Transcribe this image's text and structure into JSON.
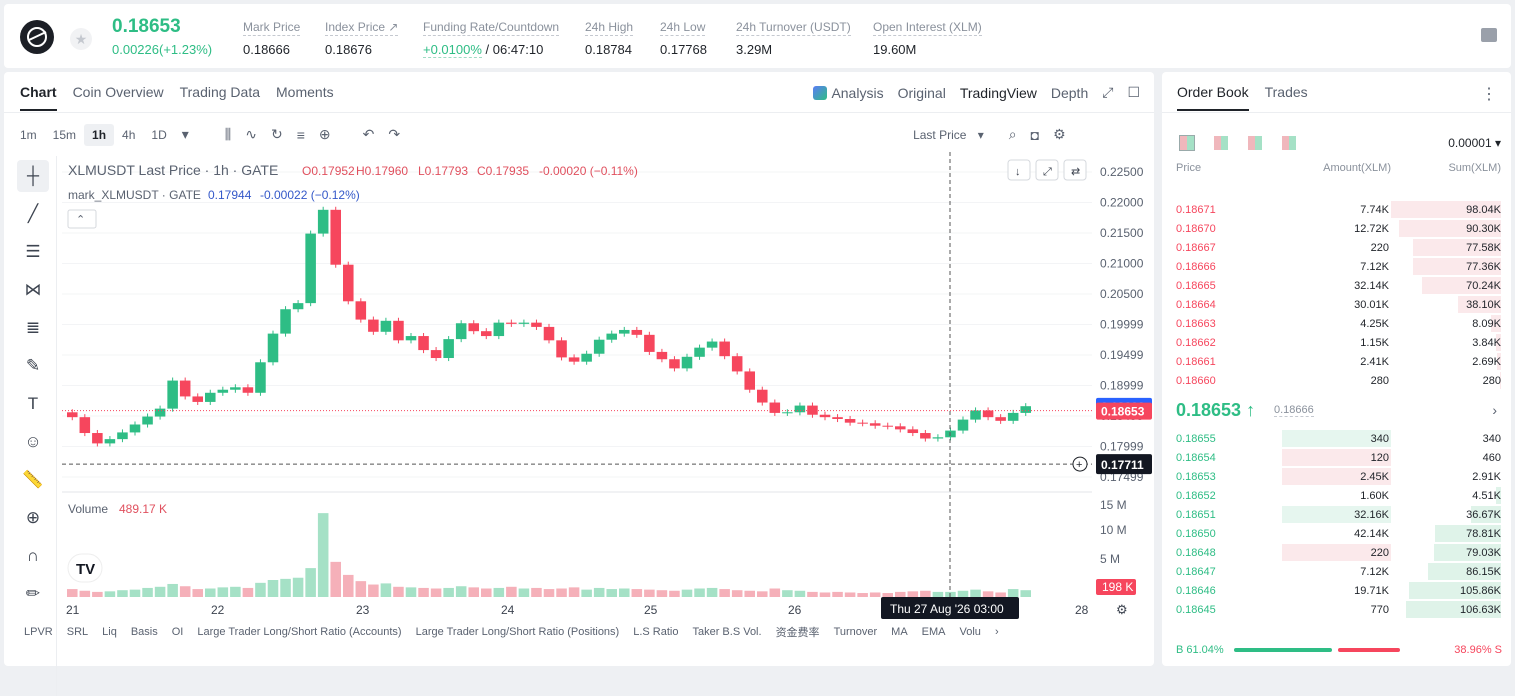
{
  "header": {
    "price": "0.18653",
    "change": "0.00226(+1.23%)",
    "stats": [
      {
        "label": "Mark Price",
        "value": "0.18666"
      },
      {
        "label": "Index Price ↗",
        "value": "0.18676"
      },
      {
        "label": "Funding Rate/Countdown",
        "value_green": "+0.0100%",
        "value": " / 06:47:10"
      },
      {
        "label": "24h High",
        "value": "0.18784"
      },
      {
        "label": "24h Low",
        "value": "0.17768"
      },
      {
        "label": "24h Turnover (USDT)",
        "value": "3.29M"
      },
      {
        "label": "Open Interest (XLM)",
        "value": "19.60M"
      }
    ]
  },
  "chart_tabs": [
    "Chart",
    "Coin Overview",
    "Trading Data",
    "Moments"
  ],
  "views": {
    "analysis": "Analysis",
    "original": "Original",
    "tradingview": "TradingView",
    "depth": "Depth"
  },
  "intervals": [
    "1m",
    "15m",
    "1h",
    "4h",
    "1D"
  ],
  "last_price_select": "Last Price",
  "legend": {
    "title": "XLMUSDT Last Price · 1h · GATE",
    "o": "O0.17952",
    "h": "H0.17960",
    "l": "L0.17793",
    "c": "C0.17935",
    "chg": "-0.00020 (−0.11%)",
    "mark": "mark_XLMUSDT · GATE",
    "mark_v": "0.17944",
    "mark_chg": "-0.00022 (−0.12%)"
  },
  "volume": {
    "label": "Volume",
    "value": "489.17 K",
    "y_labels": [
      "15 M",
      "10 M",
      "5 M"
    ],
    "last": "198 K"
  },
  "chart_data": {
    "type": "candlestick",
    "y_ticks": [
      "0.22500",
      "0.22000",
      "0.21500",
      "0.21000",
      "0.20500",
      "0.19999",
      "0.19499",
      "0.18999",
      "0.18499",
      "0.17999",
      "0.17499"
    ],
    "x_ticks": [
      "21",
      "22",
      "23",
      "24",
      "25",
      "26",
      "28"
    ],
    "ylim": [
      0.17499,
      0.225
    ],
    "mark_price": "0.18666",
    "last_price": "0.18653",
    "cursor_price": "0.17711",
    "cursor_time": "Thu 27 Aug '26   03:00",
    "close": [
      0.1848,
      0.1822,
      0.1805,
      0.1812,
      0.1823,
      0.1836,
      0.1849,
      0.1862,
      0.1908,
      0.1882,
      0.1873,
      0.1888,
      0.1893,
      0.1897,
      0.1888,
      0.1938,
      0.1985,
      0.2025,
      0.2035,
      0.2149,
      0.2188,
      0.2098,
      0.2038,
      0.2008,
      0.1988,
      0.2006,
      0.1974,
      0.1981,
      0.1958,
      0.1945,
      0.1976,
      0.2002,
      0.1989,
      0.1981,
      0.2003,
      0.2001,
      0.2003,
      0.1996,
      0.1974,
      0.1946,
      0.1939,
      0.1952,
      0.1975,
      0.1985,
      0.1991,
      0.1983,
      0.1955,
      0.1943,
      0.1928,
      0.1947,
      0.1962,
      0.1972,
      0.1948,
      0.1923,
      0.1893,
      0.1872,
      0.1855,
      0.1856,
      0.1867,
      0.1852,
      0.1848,
      0.1845,
      0.1839,
      0.1838,
      0.1834,
      0.1833,
      0.1828,
      0.1822,
      0.1813,
      0.1815,
      0.1826,
      0.1844,
      0.1859,
      0.1848,
      0.1842,
      0.1855,
      0.1866
    ],
    "volume": [
      1.4,
      1.1,
      0.9,
      1.0,
      1.2,
      1.3,
      1.6,
      1.8,
      2.3,
      1.9,
      1.4,
      1.5,
      1.7,
      1.8,
      1.6,
      2.5,
      3.0,
      3.2,
      3.4,
      5.1,
      14.8,
      6.2,
      3.9,
      2.8,
      2.2,
      2.4,
      1.8,
      1.7,
      1.6,
      1.5,
      1.6,
      1.9,
      1.7,
      1.5,
      1.6,
      1.8,
      1.5,
      1.6,
      1.4,
      1.5,
      1.7,
      1.3,
      1.6,
      1.4,
      1.5,
      1.4,
      1.3,
      1.2,
      1.1,
      1.3,
      1.5,
      1.6,
      1.4,
      1.2,
      1.1,
      1.0,
      1.5,
      1.2,
      1.1,
      0.9,
      0.8,
      0.9,
      0.8,
      0.7,
      0.8,
      0.7,
      0.9,
      1.0,
      1.1,
      0.9,
      0.9,
      1.1,
      1.3,
      1.0,
      0.8,
      1.4,
      1.2
    ]
  },
  "toolbar_icons": [
    "crosshair-icon",
    "trendline-icon",
    "fib-icon",
    "pattern-icon",
    "measure-lines-icon",
    "brush-icon",
    "text-icon",
    "emoji-icon",
    "ruler-icon",
    "zoom-icon",
    "magnet-icon",
    "pencil-icon"
  ],
  "indicators": [
    "LPVR",
    "SRL",
    "Liq",
    "Basis",
    "OI",
    "Large Trader Long/Short Ratio (Accounts)",
    "Large Trader Long/Short Ratio (Positions)",
    "L.S Ratio",
    "Taker B.S Vol.",
    "资金费率",
    "Turnover",
    "MA",
    "EMA",
    "Volu"
  ],
  "orderbook": {
    "tabs": [
      "Order Book",
      "Trades"
    ],
    "precision": "0.00001",
    "headers": {
      "price": "Price",
      "amount": "Amount(XLM)",
      "sum": "Sum(XLM)"
    },
    "asks": [
      {
        "p": "0.18671",
        "a": "7.74K",
        "s": "98.04K",
        "depth": 0.92
      },
      {
        "p": "0.18670",
        "a": "12.72K",
        "s": "90.30K",
        "depth": 0.85
      },
      {
        "p": "0.18667",
        "a": "220",
        "s": "77.58K",
        "depth": 0.73
      },
      {
        "p": "0.18666",
        "a": "7.12K",
        "s": "77.36K",
        "depth": 0.73
      },
      {
        "p": "0.18665",
        "a": "32.14K",
        "s": "70.24K",
        "depth": 0.66
      },
      {
        "p": "0.18664",
        "a": "30.01K",
        "s": "38.10K",
        "depth": 0.36
      },
      {
        "p": "0.18663",
        "a": "4.25K",
        "s": "8.09K",
        "depth": 0.08
      },
      {
        "p": "0.18662",
        "a": "1.15K",
        "s": "3.84K",
        "depth": 0.04
      },
      {
        "p": "0.18661",
        "a": "2.41K",
        "s": "2.69K",
        "depth": 0.03
      },
      {
        "p": "0.18660",
        "a": "280",
        "s": "280",
        "depth": 0.01
      }
    ],
    "mid": "0.18653 ↑",
    "mid_mark": "0.18666",
    "bids": [
      {
        "p": "0.18655",
        "a": "340",
        "s": "340",
        "amt": 0.75
      },
      {
        "p": "0.18654",
        "a": "120",
        "s": "460",
        "amt": 0.75,
        "red": true
      },
      {
        "p": "0.18653",
        "a": "2.45K",
        "s": "2.91K",
        "amt": 0.75,
        "red": true
      },
      {
        "p": "0.18652",
        "a": "1.60K",
        "s": "4.51K",
        "amt": 0.0
      },
      {
        "p": "0.18651",
        "a": "32.16K",
        "s": "36.67K",
        "amt": 0.75
      },
      {
        "p": "0.18650",
        "a": "42.14K",
        "s": "78.81K",
        "amt": 0.0
      },
      {
        "p": "0.18648",
        "a": "220",
        "s": "79.03K",
        "amt": 0.75,
        "red": true
      },
      {
        "p": "0.18647",
        "a": "7.12K",
        "s": "86.15K",
        "amt": 0.0
      },
      {
        "p": "0.18646",
        "a": "19.71K",
        "s": "105.86K",
        "amt": 0.0
      },
      {
        "p": "0.18645",
        "a": "770",
        "s": "106.63K",
        "amt": 0.0
      }
    ],
    "bid_depth": [
      0.0,
      0.0,
      0.0,
      0.05,
      0.32,
      0.7,
      0.71,
      0.77,
      0.97,
      1.0
    ],
    "buy": "B 61.04%",
    "sell": "38.96% S",
    "buy_ratio": 0.6104
  }
}
